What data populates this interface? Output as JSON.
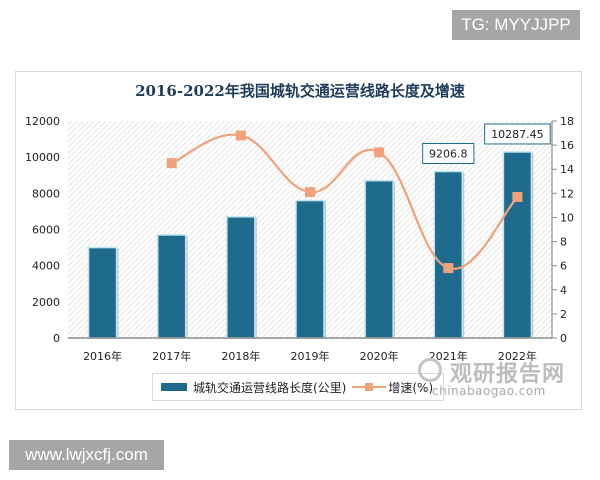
{
  "watermarks": {
    "top_tag": "TG: MYYJJPP",
    "bottom_tag": "www.lwjxcfj.com",
    "brand_cn": "观研报告网",
    "brand_en": "chinabaogao.com"
  },
  "chart_data": {
    "type": "bar",
    "title": "2016-2022年我国城轨交通运营线路长度及增速",
    "categories": [
      "2016年",
      "2017年",
      "2018年",
      "2019年",
      "2020年",
      "2021年",
      "2022年"
    ],
    "series": [
      {
        "name": "城轨交通运营线路长度(公里)",
        "type": "bar",
        "axis": "left",
        "color": "#1f6b8e",
        "values": [
          5000,
          5700,
          6700,
          7600,
          8700,
          9206.8,
          10287.45
        ]
      },
      {
        "name": "增速(%)",
        "type": "line",
        "axis": "right",
        "color": "#f0a27a",
        "values": [
          null,
          14.5,
          16.8,
          12.1,
          15.4,
          5.8,
          11.7
        ]
      }
    ],
    "data_labels": [
      {
        "category": "2021年",
        "text": "9206.8"
      },
      {
        "category": "2022年",
        "text": "10287.45"
      }
    ],
    "left_axis": {
      "ylim": [
        0,
        12000
      ],
      "ticks": [
        "0",
        "2000",
        "4000",
        "6000",
        "8000",
        "10000",
        "12000"
      ]
    },
    "right_axis": {
      "ylim": [
        0,
        18
      ],
      "ticks": [
        "0",
        "2",
        "4",
        "6",
        "8",
        "10",
        "12",
        "14",
        "16",
        "18"
      ]
    },
    "xlabel": "",
    "ylabel": "",
    "grid": false,
    "legend_position": "bottom",
    "legend": [
      "城轨交通运营线路长度(公里)",
      "增速(%)"
    ]
  }
}
